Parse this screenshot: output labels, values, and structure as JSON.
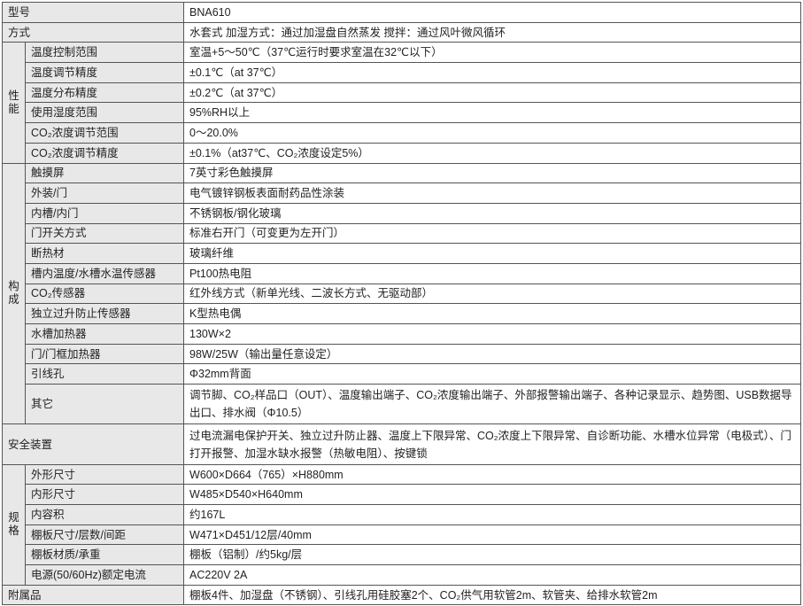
{
  "rows": [
    {
      "label": "型号",
      "value": "BNA610"
    },
    {
      "label": "方式",
      "value": "水套式  加湿方式：通过加湿盘自然蒸发  搅拌：通过风叶微风循环"
    },
    {
      "group": "性能",
      "items": [
        {
          "label": "温度控制范围",
          "value": "室温+5～50℃（37℃运行时要求室温在32℃以下）"
        },
        {
          "label": "温度调节精度",
          "value": "±0.1℃（at 37℃）"
        },
        {
          "label": "温度分布精度",
          "value": "±0.2℃（at 37℃）"
        },
        {
          "label": "使用湿度范围",
          "value": "95%RH以上"
        },
        {
          "label": "CO₂浓度调节范围",
          "value": "0～20.0%"
        },
        {
          "label": "CO₂浓度调节精度",
          "value": "±0.1%（at37℃、CO₂浓度设定5%）"
        }
      ]
    },
    {
      "group": "构成",
      "items": [
        {
          "label": "触摸屏",
          "value": "7英寸彩色触摸屏"
        },
        {
          "label": "外装/门",
          "value": "电气镀锌钢板表面耐药品性涂装"
        },
        {
          "label": "内槽/内门",
          "value": "不锈钢板/钢化玻璃"
        },
        {
          "label": "门开关方式",
          "value": "标准右开门（可变更为左开门）"
        },
        {
          "label": "断热材",
          "value": "玻璃纤维"
        },
        {
          "label": "槽内温度/水槽水温传感器",
          "value": "Pt100热电阻"
        },
        {
          "label": "CO₂传感器",
          "value": "红外线方式（新单光线、二波长方式、无驱动部）"
        },
        {
          "label": "独立过升防止传感器",
          "value": "K型热电偶"
        },
        {
          "label": "水槽加热器",
          "value": "130W×2"
        },
        {
          "label": "门/门框加热器",
          "value": "98W/25W（输出量任意设定）"
        },
        {
          "label": "引线孔",
          "value": "Φ32mm背面"
        },
        {
          "label": "其它",
          "value": "调节脚、CO₂样品口（OUT）、温度输出端子、CO₂浓度输出端子、外部报警输出端子、各种记录显示、趋势图、USB数据导出口、排水阀（Φ10.5）",
          "double": true
        }
      ]
    },
    {
      "label": "安全装置",
      "value": "过电流漏电保护开关、独立过升防止器、温度上下限异常、CO₂浓度上下限异常、自诊断功能、水槽水位异常（电极式）、门打开报警、加湿水缺水报警（热敏电阻）、按键锁",
      "double": true
    },
    {
      "group": "规格",
      "items": [
        {
          "label": "外形尺寸",
          "value": "W600×D664（765）×H880mm"
        },
        {
          "label": "内形尺寸",
          "value": "W485×D540×H640mm"
        },
        {
          "label": "内容积",
          "value": "约167L"
        },
        {
          "label": "棚板尺寸/层数/间距",
          "value": "W471×D451/12层/40mm"
        },
        {
          "label": "棚板材质/承重",
          "value": "棚板（铝制）/约5kg/层"
        },
        {
          "label": "电源(50/60Hz)额定电流",
          "value": "AC220V  2A"
        }
      ]
    },
    {
      "label": "附属品",
      "value": "棚板4件、加湿盘（不锈钢）、引线孔用硅胶塞2个、CO₂供气用软管2m、软管夹、给排水软管2m"
    }
  ]
}
